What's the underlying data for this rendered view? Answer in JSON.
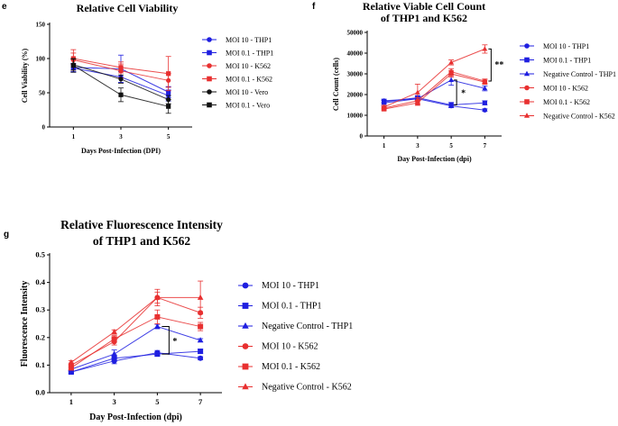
{
  "panel_labels": {
    "e": "e",
    "f": "f",
    "g": "g"
  },
  "chart_data": [
    {
      "id": "e",
      "type": "line",
      "title": "Relative Cell Viability",
      "xlabel": "Days Post-Infection (DPI)",
      "ylabel": "Cell Viability (%)",
      "x": [
        1,
        3,
        5
      ],
      "xlim": [
        0,
        6
      ],
      "ylim": [
        0,
        150
      ],
      "yticks": [
        0,
        50,
        100,
        150
      ],
      "legend_position": "right",
      "series": [
        {
          "name": "MOI 10 - THP1",
          "color": "#1f1fe0",
          "marker": "circle",
          "values": [
            86,
            73,
            46
          ],
          "errors": [
            6,
            8,
            8
          ]
        },
        {
          "name": "MOI 0.1 - THP1",
          "color": "#1f1fe0",
          "marker": "square",
          "values": [
            87,
            85,
            51
          ],
          "errors": [
            6,
            20,
            8
          ]
        },
        {
          "name": "MOI 10 - K562",
          "color": "#e83030",
          "marker": "circle",
          "values": [
            98,
            82,
            68
          ],
          "errors": [
            15,
            10,
            10
          ]
        },
        {
          "name": "MOI 0.1 - K562",
          "color": "#e83030",
          "marker": "square",
          "values": [
            100,
            87,
            78
          ],
          "errors": [
            8,
            8,
            25
          ]
        },
        {
          "name": "MOI 10 - Vero",
          "color": "#111111",
          "marker": "circle",
          "values": [
            91,
            70,
            40
          ],
          "errors": [
            8,
            6,
            6
          ]
        },
        {
          "name": "MOI 0.1 - Vero",
          "color": "#111111",
          "marker": "square",
          "values": [
            90,
            47,
            30
          ],
          "errors": [
            10,
            10,
            10
          ]
        }
      ]
    },
    {
      "id": "f",
      "type": "line",
      "title": [
        "Relative Viable Cell Count",
        "of THP1 and K562"
      ],
      "xlabel": "Day Post-Infection (dpi)",
      "ylabel": "Cell Count (cells)",
      "x": [
        1,
        3,
        5,
        7
      ],
      "xlim": [
        0,
        8
      ],
      "ylim": [
        0,
        50000
      ],
      "yticks": [
        0,
        10000,
        20000,
        30000,
        40000,
        50000
      ],
      "legend_position": "right",
      "annotations": [
        "**",
        "*"
      ],
      "series": [
        {
          "name": "MOI 10 - THP1",
          "color": "#1f1fe0",
          "marker": "circle",
          "values": [
            17000,
            18000,
            14500,
            12500
          ],
          "errors": [
            800,
            1000,
            800,
            600
          ]
        },
        {
          "name": "MOI 0.1 - THP1",
          "color": "#1f1fe0",
          "marker": "square",
          "values": [
            16500,
            18500,
            15000,
            16000
          ],
          "errors": [
            800,
            1000,
            1200,
            1000
          ]
        },
        {
          "name": "Negative Control - THP1",
          "color": "#1f1fe0",
          "marker": "triangle",
          "values": [
            16000,
            18000,
            27000,
            23000
          ],
          "errors": [
            1200,
            1000,
            2500,
            1200
          ]
        },
        {
          "name": "MOI 10 - K562",
          "color": "#e83030",
          "marker": "circle",
          "values": [
            13500,
            17000,
            31000,
            26500
          ],
          "errors": [
            800,
            1500,
            1500,
            1000
          ]
        },
        {
          "name": "MOI 0.1 - K562",
          "color": "#e83030",
          "marker": "square",
          "values": [
            13000,
            16000,
            30000,
            26000
          ],
          "errors": [
            800,
            1200,
            1500,
            1000
          ]
        },
        {
          "name": "Negative Control - K562",
          "color": "#e83030",
          "marker": "triangle",
          "values": [
            14000,
            21000,
            35500,
            42000
          ],
          "errors": [
            800,
            4000,
            1200,
            2000
          ]
        }
      ]
    },
    {
      "id": "g",
      "type": "line",
      "title": [
        "Relative Fluorescence Intensity",
        "of THP1 and K562"
      ],
      "xlabel": "Day Post-Infection (dpi)",
      "ylabel": "Fluorescence Intensity",
      "x": [
        1,
        3,
        5,
        7
      ],
      "xlim": [
        0,
        8
      ],
      "ylim": [
        0.0,
        0.5
      ],
      "yticks": [
        0.0,
        0.1,
        0.2,
        0.3,
        0.4,
        0.5
      ],
      "legend_position": "right",
      "annotations": [
        "*"
      ],
      "series": [
        {
          "name": "MOI 10 - THP1",
          "color": "#1f1fe0",
          "marker": "circle",
          "values": [
            0.075,
            0.115,
            0.145,
            0.125
          ],
          "errors": [
            0.005,
            0.01,
            0.008,
            0.006
          ]
        },
        {
          "name": "MOI 0.1 - THP1",
          "color": "#1f1fe0",
          "marker": "square",
          "values": [
            0.075,
            0.125,
            0.14,
            0.15
          ],
          "errors": [
            0.006,
            0.012,
            0.006,
            0.008
          ]
        },
        {
          "name": "Negative Control - THP1",
          "color": "#1f1fe0",
          "marker": "triangle",
          "values": [
            0.085,
            0.14,
            0.24,
            0.19
          ],
          "errors": [
            0.006,
            0.015,
            0.008,
            0.006
          ]
        },
        {
          "name": "MOI 10 - K562",
          "color": "#e83030",
          "marker": "circle",
          "values": [
            0.1,
            0.185,
            0.345,
            0.29
          ],
          "errors": [
            0.008,
            0.012,
            0.03,
            0.02
          ]
        },
        {
          "name": "MOI 0.1 - K562",
          "color": "#e83030",
          "marker": "square",
          "values": [
            0.09,
            0.195,
            0.275,
            0.24
          ],
          "errors": [
            0.008,
            0.012,
            0.025,
            0.015
          ]
        },
        {
          "name": "Negative Control - K562",
          "color": "#e83030",
          "marker": "triangle",
          "values": [
            0.11,
            0.22,
            0.345,
            0.345
          ],
          "errors": [
            0.006,
            0.008,
            0.02,
            0.06
          ]
        }
      ]
    }
  ]
}
